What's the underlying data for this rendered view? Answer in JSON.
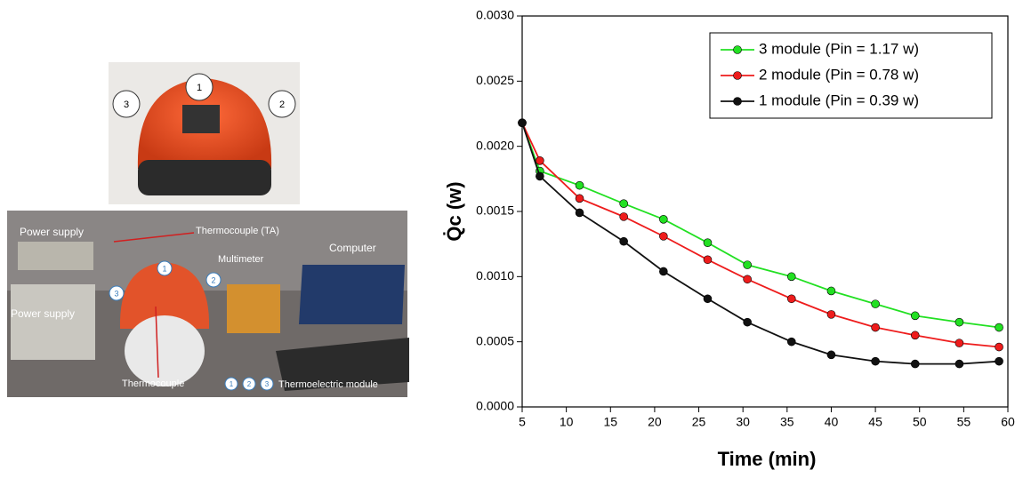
{
  "photos": {
    "top_markers": [
      "1",
      "2",
      "3"
    ],
    "labels": [
      "Power supply",
      "Thermocouple (TA)",
      "Multimeter",
      "Computer",
      "Power supply",
      "Thermocouple",
      "Thermoelectric module"
    ],
    "bottom_markers": [
      "1",
      "2",
      "3"
    ],
    "legend_markers": [
      "1",
      "2",
      "3"
    ]
  },
  "chart_data": {
    "type": "line",
    "xlabel": "Time (min)",
    "ylabel": "Q̇c (w)",
    "x": [
      5,
      7,
      11.5,
      16.5,
      21,
      26,
      30.5,
      35.5,
      40,
      45,
      49.5,
      54.5,
      59
    ],
    "series": [
      {
        "name": "3 module (Pin = 1.17 w)",
        "color": "#22e022",
        "values": [
          0.00218,
          0.00181,
          0.0017,
          0.00156,
          0.00144,
          0.00126,
          0.00109,
          0.001,
          0.00089,
          0.00079,
          0.0007,
          0.00065,
          0.00061
        ]
      },
      {
        "name": "2 module (Pin = 0.78 w)",
        "color": "#ee1c1c",
        "values": [
          0.00218,
          0.00189,
          0.0016,
          0.00146,
          0.00131,
          0.00113,
          0.00098,
          0.00083,
          0.00071,
          0.00061,
          0.00055,
          0.00049,
          0.00046
        ]
      },
      {
        "name": "1 module (Pin = 0.39 w)",
        "color": "#111111",
        "values": [
          0.00218,
          0.00177,
          0.00149,
          0.00127,
          0.00104,
          0.00083,
          0.00065,
          0.0005,
          0.0004,
          0.00035,
          0.00033,
          0.00033,
          0.00035
        ]
      }
    ],
    "xlim": [
      5,
      60
    ],
    "xticks": [
      5,
      10,
      15,
      20,
      25,
      30,
      35,
      40,
      45,
      50,
      55,
      60
    ],
    "ylim": [
      0,
      0.003
    ],
    "yticks": [
      {
        "value": 0,
        "label": "0.0000"
      },
      {
        "value": 0.0005,
        "label": "0.0005"
      },
      {
        "value": 0.001,
        "label": "0.0010"
      },
      {
        "value": 0.0015,
        "label": "0.0015"
      },
      {
        "value": 0.002,
        "label": "0.0020"
      },
      {
        "value": 0.0025,
        "label": "0.0025"
      },
      {
        "value": 0.003,
        "label": "0.0030"
      }
    ],
    "legend": "upper right"
  }
}
